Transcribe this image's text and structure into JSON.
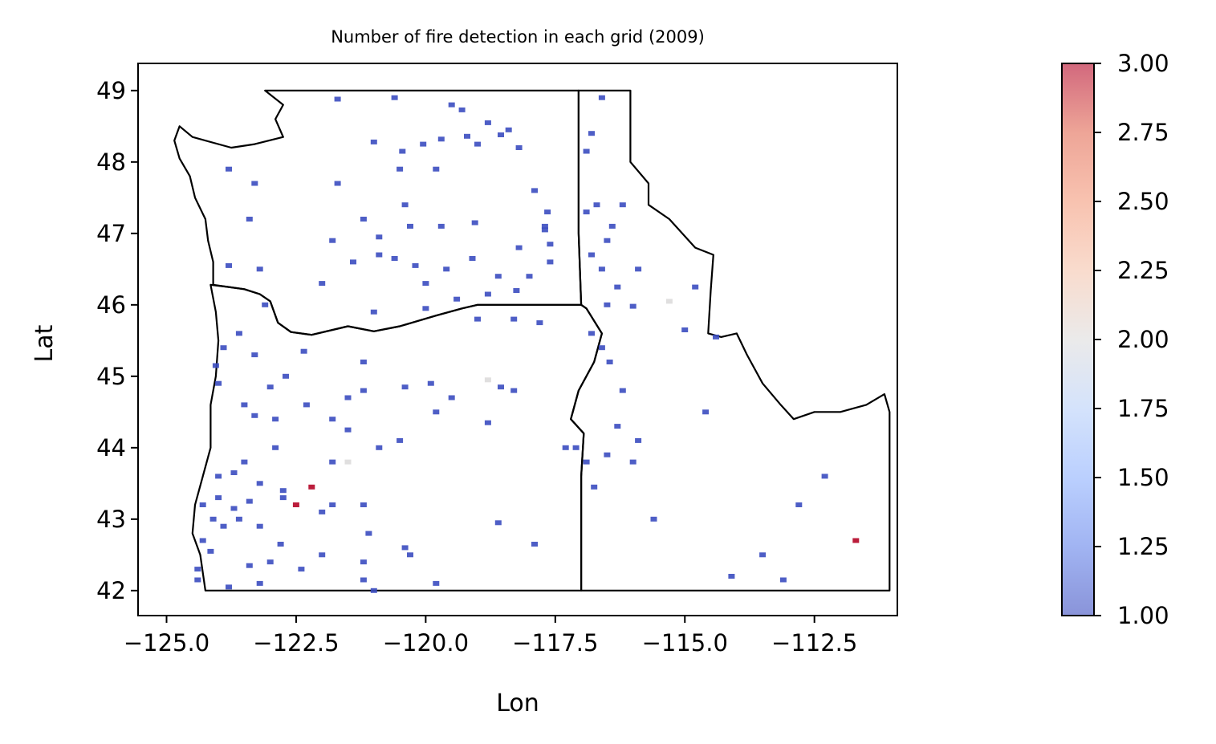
{
  "chart_data": {
    "type": "scatter",
    "title": "Number of fire detection in each grid (2009)",
    "xlabel": "Lon",
    "ylabel": "Lat",
    "xlim": [
      -125.55,
      -110.9
    ],
    "ylim": [
      41.65,
      49.38
    ],
    "xticks": [
      -125.0,
      -122.5,
      -120.0,
      -117.5,
      -115.0,
      -112.5
    ],
    "xtick_labels": [
      "−125.0",
      "−122.5",
      "−120.0",
      "−117.5",
      "−115.0",
      "−112.5"
    ],
    "yticks": [
      42,
      43,
      44,
      45,
      46,
      47,
      48,
      49
    ],
    "ytick_labels": [
      "42",
      "43",
      "44",
      "45",
      "46",
      "47",
      "48",
      "49"
    ],
    "grid": false,
    "colorbar": {
      "colormap": "coolwarm",
      "alpha": 0.6,
      "min": 1.0,
      "max": 3.0,
      "ticks": [
        1.0,
        1.25,
        1.5,
        1.75,
        2.0,
        2.25,
        2.5,
        2.75,
        3.0
      ],
      "tick_labels": [
        "1.00",
        "1.25",
        "1.50",
        "1.75",
        "2.00",
        "2.25",
        "2.50",
        "2.75",
        "3.00"
      ]
    },
    "boundaries": [
      [
        [
          -123.1,
          49.0
        ],
        [
          -122.75,
          48.8
        ],
        [
          -122.9,
          48.6
        ],
        [
          -122.75,
          48.35
        ],
        [
          -123.3,
          48.25
        ],
        [
          -123.75,
          48.2
        ],
        [
          -124.5,
          48.35
        ],
        [
          -124.75,
          48.5
        ],
        [
          -124.85,
          48.3
        ],
        [
          -124.75,
          48.05
        ],
        [
          -124.55,
          47.8
        ],
        [
          -124.45,
          47.5
        ],
        [
          -124.25,
          47.2
        ],
        [
          -124.2,
          46.9
        ],
        [
          -124.1,
          46.6
        ],
        [
          -124.1,
          46.28
        ],
        [
          -123.8,
          46.25
        ],
        [
          -123.5,
          46.22
        ],
        [
          -123.2,
          46.15
        ],
        [
          -123.0,
          46.05
        ],
        [
          -122.85,
          45.75
        ],
        [
          -122.6,
          45.62
        ],
        [
          -122.2,
          45.58
        ],
        [
          -121.5,
          45.7
        ],
        [
          -121.0,
          45.63
        ],
        [
          -120.5,
          45.7
        ],
        [
          -119.8,
          45.85
        ],
        [
          -119.3,
          45.95
        ],
        [
          -119.0,
          46.0
        ],
        [
          -117.0,
          46.0
        ],
        [
          -117.05,
          47.0
        ],
        [
          -117.05,
          49.0
        ],
        [
          -123.1,
          49.0
        ]
      ],
      [
        [
          -124.15,
          46.28
        ],
        [
          -124.05,
          45.9
        ],
        [
          -124.0,
          45.5
        ],
        [
          -124.05,
          45.0
        ],
        [
          -124.15,
          44.6
        ],
        [
          -124.15,
          44.0
        ],
        [
          -124.3,
          43.6
        ],
        [
          -124.45,
          43.2
        ],
        [
          -124.5,
          42.8
        ],
        [
          -124.35,
          42.5
        ],
        [
          -124.25,
          42.0
        ],
        [
          -120.0,
          42.0
        ],
        [
          -117.0,
          42.0
        ],
        [
          -117.0,
          43.6
        ],
        [
          -116.95,
          44.2
        ],
        [
          -117.2,
          44.4
        ],
        [
          -117.05,
          44.8
        ],
        [
          -116.75,
          45.2
        ],
        [
          -116.6,
          45.6
        ],
        [
          -116.9,
          45.95
        ],
        [
          -117.0,
          46.0
        ],
        [
          -119.0,
          46.0
        ],
        [
          -119.3,
          45.95
        ],
        [
          -119.8,
          45.85
        ],
        [
          -120.5,
          45.7
        ],
        [
          -121.0,
          45.63
        ],
        [
          -121.5,
          45.7
        ],
        [
          -122.2,
          45.58
        ],
        [
          -122.6,
          45.62
        ],
        [
          -122.85,
          45.75
        ],
        [
          -123.0,
          46.05
        ],
        [
          -123.2,
          46.15
        ],
        [
          -123.5,
          46.22
        ],
        [
          -123.8,
          46.25
        ],
        [
          -124.15,
          46.28
        ]
      ],
      [
        [
          -117.05,
          49.0
        ],
        [
          -116.05,
          49.0
        ],
        [
          -116.05,
          48.0
        ],
        [
          -115.7,
          47.7
        ],
        [
          -115.7,
          47.4
        ],
        [
          -115.3,
          47.2
        ],
        [
          -114.8,
          46.8
        ],
        [
          -114.45,
          46.7
        ],
        [
          -114.5,
          46.2
        ],
        [
          -114.55,
          45.6
        ],
        [
          -114.3,
          45.55
        ],
        [
          -114.0,
          45.6
        ],
        [
          -113.8,
          45.3
        ],
        [
          -113.5,
          44.9
        ],
        [
          -113.15,
          44.6
        ],
        [
          -112.9,
          44.4
        ],
        [
          -112.5,
          44.5
        ],
        [
          -112.0,
          44.5
        ],
        [
          -111.5,
          44.6
        ],
        [
          -111.15,
          44.75
        ],
        [
          -111.05,
          44.5
        ],
        [
          -111.05,
          42.0
        ],
        [
          -117.0,
          42.0
        ],
        [
          -117.0,
          43.6
        ],
        [
          -116.95,
          44.2
        ],
        [
          -117.2,
          44.4
        ],
        [
          -117.05,
          44.8
        ],
        [
          -116.75,
          45.2
        ],
        [
          -116.6,
          45.6
        ],
        [
          -116.9,
          45.95
        ],
        [
          -117.0,
          46.0
        ],
        [
          -117.05,
          47.0
        ],
        [
          -117.05,
          49.0
        ]
      ]
    ],
    "points": [
      [
        -121.7,
        48.88,
        1
      ],
      [
        -120.6,
        48.9,
        1
      ],
      [
        -119.5,
        48.8,
        1
      ],
      [
        -119.3,
        48.73,
        1
      ],
      [
        -118.8,
        48.55,
        1
      ],
      [
        -118.4,
        48.45,
        1
      ],
      [
        -118.55,
        48.38,
        1
      ],
      [
        -119.2,
        48.36,
        1
      ],
      [
        -119.7,
        48.32,
        1
      ],
      [
        -120.05,
        48.25,
        1
      ],
      [
        -120.45,
        48.15,
        1
      ],
      [
        -121.0,
        48.28,
        1
      ],
      [
        -118.2,
        48.2,
        1
      ],
      [
        -119.0,
        48.25,
        1
      ],
      [
        -120.5,
        47.9,
        1
      ],
      [
        -119.8,
        47.9,
        1
      ],
      [
        -121.7,
        47.7,
        1
      ],
      [
        -123.3,
        47.7,
        1
      ],
      [
        -123.8,
        47.9,
        1
      ],
      [
        -117.9,
        47.6,
        1
      ],
      [
        -120.4,
        47.4,
        1
      ],
      [
        -121.2,
        47.2,
        1
      ],
      [
        -120.3,
        47.1,
        1
      ],
      [
        -119.7,
        47.1,
        1
      ],
      [
        -119.05,
        47.15,
        1
      ],
      [
        -120.9,
        46.95,
        1
      ],
      [
        -121.8,
        46.9,
        1
      ],
      [
        -123.4,
        47.2,
        1
      ],
      [
        -123.8,
        46.55,
        1
      ],
      [
        -123.2,
        46.5,
        1
      ],
      [
        -122.0,
        46.3,
        1
      ],
      [
        -121.4,
        46.6,
        1
      ],
      [
        -120.9,
        46.7,
        1
      ],
      [
        -120.6,
        46.65,
        1
      ],
      [
        -120.2,
        46.55,
        1
      ],
      [
        -119.6,
        46.5,
        1
      ],
      [
        -119.1,
        46.65,
        1
      ],
      [
        -118.0,
        46.4,
        1
      ],
      [
        -118.25,
        46.2,
        1
      ],
      [
        -118.8,
        46.15,
        1
      ],
      [
        -119.4,
        46.08,
        1
      ],
      [
        -120.0,
        46.3,
        1
      ],
      [
        -120.0,
        45.95,
        1
      ],
      [
        -119.0,
        45.8,
        1
      ],
      [
        -118.3,
        45.8,
        1
      ],
      [
        -117.8,
        45.75,
        1
      ],
      [
        -117.6,
        46.85,
        1
      ],
      [
        -117.6,
        46.6,
        1
      ],
      [
        -117.7,
        47.05,
        1
      ],
      [
        -117.65,
        47.3,
        1
      ],
      [
        -117.7,
        47.1,
        1
      ],
      [
        -118.2,
        46.8,
        1
      ],
      [
        -118.6,
        46.4,
        1
      ],
      [
        -116.8,
        48.4,
        1
      ],
      [
        -116.9,
        48.15,
        1
      ],
      [
        -116.6,
        48.9,
        1
      ],
      [
        -116.7,
        47.4,
        1
      ],
      [
        -116.9,
        47.3,
        1
      ],
      [
        -116.4,
        47.1,
        1
      ],
      [
        -116.2,
        47.4,
        1
      ],
      [
        -116.5,
        46.9,
        1
      ],
      [
        -116.8,
        46.7,
        1
      ],
      [
        -116.6,
        46.5,
        1
      ],
      [
        -116.3,
        46.25,
        1
      ],
      [
        -116.5,
        46.0,
        1
      ],
      [
        -116.0,
        45.98,
        1
      ],
      [
        -115.9,
        46.5,
        1
      ],
      [
        -116.8,
        45.6,
        1
      ],
      [
        -116.6,
        45.4,
        1
      ],
      [
        -116.45,
        45.2,
        1
      ],
      [
        -116.2,
        44.8,
        1
      ],
      [
        -116.3,
        44.3,
        1
      ],
      [
        -115.9,
        44.1,
        1
      ],
      [
        -116.0,
        43.8,
        1
      ],
      [
        -116.5,
        43.9,
        1
      ],
      [
        -116.9,
        43.8,
        1
      ],
      [
        -117.1,
        44.0,
        1
      ],
      [
        -116.75,
        43.45,
        1
      ],
      [
        -115.6,
        43.0,
        1
      ],
      [
        -115.3,
        46.05,
        2
      ],
      [
        -114.8,
        46.25,
        1
      ],
      [
        -115.0,
        45.65,
        1
      ],
      [
        -114.4,
        45.55,
        1
      ],
      [
        -114.6,
        44.5,
        1
      ],
      [
        -112.3,
        43.6,
        1
      ],
      [
        -112.8,
        43.2,
        1
      ],
      [
        -111.7,
        42.7,
        3
      ],
      [
        -113.5,
        42.5,
        1
      ],
      [
        -114.1,
        42.2,
        1
      ],
      [
        -113.1,
        42.15,
        1
      ],
      [
        -123.6,
        45.6,
        1
      ],
      [
        -123.9,
        45.4,
        1
      ],
      [
        -124.05,
        45.15,
        1
      ],
      [
        -123.3,
        45.3,
        1
      ],
      [
        -122.7,
        45.0,
        1
      ],
      [
        -122.35,
        45.35,
        1
      ],
      [
        -121.2,
        45.2,
        1
      ],
      [
        -120.4,
        44.85,
        1
      ],
      [
        -121.2,
        44.8,
        1
      ],
      [
        -121.5,
        44.7,
        1
      ],
      [
        -122.3,
        44.6,
        1
      ],
      [
        -123.0,
        44.85,
        1
      ],
      [
        -123.5,
        44.6,
        1
      ],
      [
        -123.3,
        44.45,
        1
      ],
      [
        -122.9,
        44.4,
        1
      ],
      [
        -121.8,
        44.4,
        1
      ],
      [
        -121.5,
        44.25,
        1
      ],
      [
        -120.9,
        44.0,
        1
      ],
      [
        -120.5,
        44.1,
        1
      ],
      [
        -121.8,
        43.8,
        1
      ],
      [
        -119.5,
        44.7,
        1
      ],
      [
        -118.8,
        44.95,
        2
      ],
      [
        -118.55,
        44.85,
        1
      ],
      [
        -118.8,
        44.35,
        1
      ],
      [
        -118.3,
        44.8,
        1
      ],
      [
        -119.8,
        44.5,
        1
      ],
      [
        -119.9,
        44.9,
        1
      ],
      [
        -121.0,
        45.9,
        1
      ],
      [
        -123.1,
        46.0,
        1
      ],
      [
        -124.0,
        44.9,
        1
      ],
      [
        -123.5,
        43.8,
        1
      ],
      [
        -123.7,
        43.65,
        1
      ],
      [
        -124.0,
        43.6,
        1
      ],
      [
        -123.2,
        43.5,
        1
      ],
      [
        -122.75,
        43.4,
        1
      ],
      [
        -122.2,
        43.45,
        3
      ],
      [
        -122.5,
        43.2,
        3
      ],
      [
        -122.75,
        43.3,
        1
      ],
      [
        -123.4,
        43.25,
        1
      ],
      [
        -123.7,
        43.15,
        1
      ],
      [
        -124.0,
        43.3,
        1
      ],
      [
        -124.3,
        43.2,
        1
      ],
      [
        -124.1,
        43.0,
        1
      ],
      [
        -123.9,
        42.9,
        1
      ],
      [
        -123.6,
        43.0,
        1
      ],
      [
        -123.2,
        42.9,
        1
      ],
      [
        -122.8,
        42.65,
        1
      ],
      [
        -122.0,
        43.1,
        1
      ],
      [
        -121.2,
        43.2,
        1
      ],
      [
        -121.1,
        42.8,
        1
      ],
      [
        -121.2,
        42.4,
        1
      ],
      [
        -121.2,
        42.15,
        1
      ],
      [
        -120.3,
        42.5,
        1
      ],
      [
        -119.8,
        42.1,
        1
      ],
      [
        -118.6,
        42.95,
        1
      ],
      [
        -117.9,
        42.65,
        1
      ],
      [
        -123.0,
        42.4,
        1
      ],
      [
        -122.4,
        42.3,
        1
      ],
      [
        -122.0,
        42.5,
        1
      ],
      [
        -124.3,
        42.7,
        1
      ],
      [
        -124.4,
        42.3,
        1
      ],
      [
        -124.4,
        42.15,
        1
      ],
      [
        -123.8,
        42.05,
        1
      ],
      [
        -123.2,
        42.1,
        1
      ],
      [
        -121.0,
        42.0,
        1
      ],
      [
        -121.8,
        43.2,
        1
      ],
      [
        -122.9,
        44.0,
        1
      ],
      [
        -123.4,
        42.35,
        1
      ],
      [
        -124.15,
        42.55,
        1
      ],
      [
        -121.5,
        43.8,
        2
      ],
      [
        -120.4,
        42.6,
        1
      ],
      [
        -117.3,
        44.0,
        1
      ]
    ]
  }
}
